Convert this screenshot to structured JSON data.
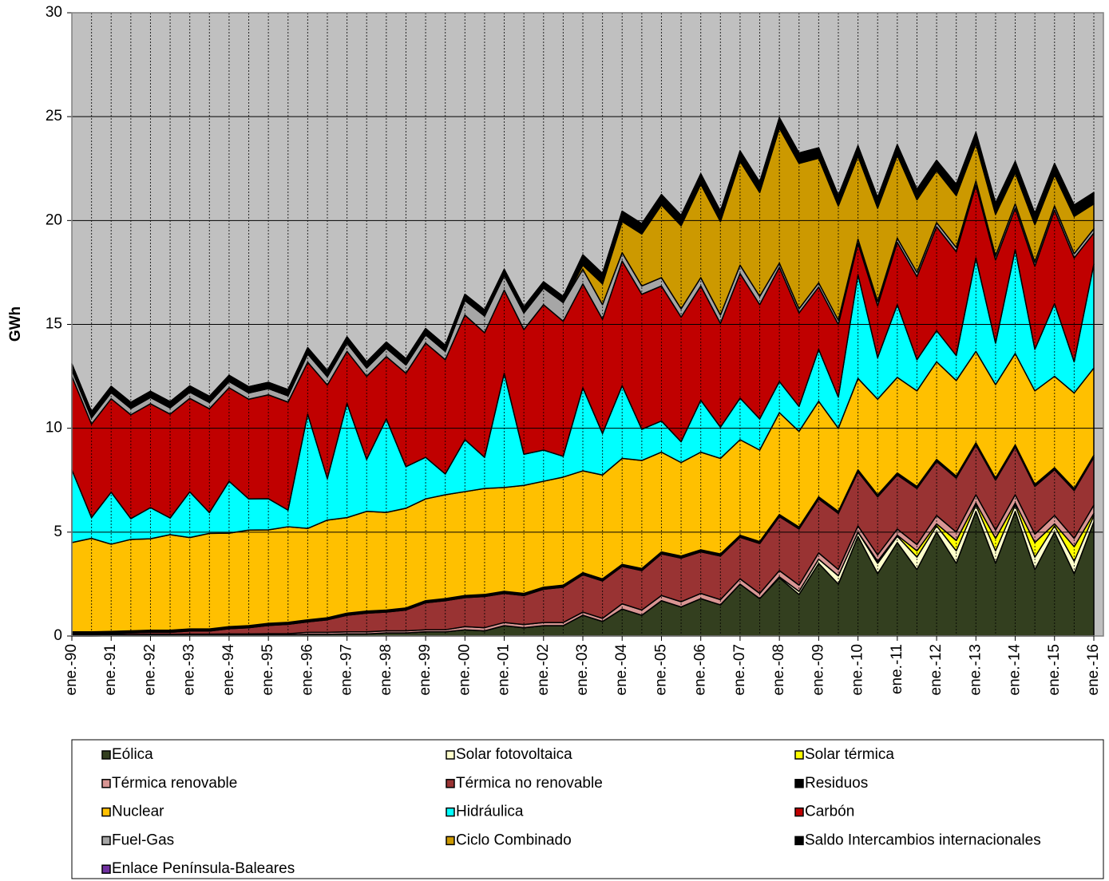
{
  "chart_data": {
    "type": "stacked_area",
    "y_label": "GWh",
    "categories": [
      "ene.-90",
      null,
      "ene.-91",
      null,
      "ene.-92",
      null,
      "ene.-93",
      null,
      "ene.-94",
      null,
      "ene.-95",
      null,
      "ene.-96",
      null,
      "ene.-97",
      null,
      "ene.-98",
      null,
      "ene.-99",
      null,
      "ene.-00",
      null,
      "ene.-01",
      null,
      "ene.-02",
      null,
      "ene.-03",
      null,
      "ene.-04",
      null,
      "ene.-05",
      null,
      "ene.-06",
      null,
      "ene.-07",
      null,
      "ene.-08",
      null,
      "ene.-09",
      null,
      "ene.-10",
      null,
      "ene.-11",
      null,
      "ene.-12",
      null,
      "ene.-13",
      null,
      "ene.-14",
      null,
      "ene.-15",
      null,
      "ene.-16"
    ],
    "ylim": [
      0,
      30
    ],
    "yticks": [
      0,
      5,
      10,
      15,
      20,
      25,
      30
    ],
    "grid": true,
    "legend": "bottom",
    "series": [
      {
        "name": "Eólica",
        "color": "#333f1f",
        "values": [
          0,
          0,
          0.02,
          0.02,
          0.03,
          0.03,
          0.04,
          0.04,
          0.05,
          0.05,
          0.06,
          0.06,
          0.08,
          0.08,
          0.1,
          0.1,
          0.15,
          0.15,
          0.2,
          0.2,
          0.3,
          0.25,
          0.5,
          0.4,
          0.5,
          0.5,
          1.0,
          0.7,
          1.3,
          1.0,
          1.7,
          1.4,
          1.8,
          1.5,
          2.5,
          1.8,
          2.8,
          2.0,
          3.5,
          2.5,
          4.8,
          3.0,
          4.5,
          3.2,
          5.0,
          3.5,
          6.0,
          3.5,
          6.0,
          3.2,
          5.0,
          3.0,
          5.5
        ]
      },
      {
        "name": "Solar fotovoltaica",
        "color": "#ffffcc",
        "values": [
          0,
          0,
          0,
          0,
          0,
          0,
          0,
          0,
          0,
          0,
          0,
          0,
          0,
          0,
          0,
          0,
          0,
          0,
          0,
          0,
          0,
          0,
          0,
          0,
          0,
          0,
          0,
          0,
          0,
          0,
          0,
          0,
          0,
          0,
          0,
          0,
          0.05,
          0.15,
          0.2,
          0.4,
          0.2,
          0.5,
          0.3,
          0.6,
          0.3,
          0.6,
          0.3,
          0.6,
          0.3,
          0.6,
          0.3,
          0.6,
          0.3
        ]
      },
      {
        "name": "Solar térmica",
        "color": "#ffff00",
        "values": [
          0,
          0,
          0,
          0,
          0,
          0,
          0,
          0,
          0,
          0,
          0,
          0,
          0,
          0,
          0,
          0,
          0,
          0,
          0,
          0,
          0,
          0,
          0,
          0,
          0,
          0,
          0,
          0,
          0,
          0,
          0,
          0,
          0,
          0,
          0,
          0,
          0,
          0,
          0,
          0,
          0,
          0.1,
          0.05,
          0.3,
          0.1,
          0.5,
          0.1,
          0.6,
          0.1,
          0.7,
          0.1,
          0.7,
          0.1
        ]
      },
      {
        "name": "Térmica renovable",
        "color": "#d99694",
        "values": [
          0.05,
          0.05,
          0.05,
          0.05,
          0.05,
          0.05,
          0.05,
          0.05,
          0.05,
          0.05,
          0.05,
          0.05,
          0.1,
          0.1,
          0.1,
          0.1,
          0.1,
          0.1,
          0.1,
          0.1,
          0.15,
          0.15,
          0.15,
          0.15,
          0.15,
          0.15,
          0.15,
          0.15,
          0.25,
          0.25,
          0.25,
          0.25,
          0.25,
          0.25,
          0.25,
          0.25,
          0.3,
          0.3,
          0.3,
          0.3,
          0.3,
          0.3,
          0.3,
          0.3,
          0.4,
          0.4,
          0.4,
          0.4,
          0.4,
          0.4,
          0.4,
          0.4,
          0.4
        ]
      },
      {
        "name": "Térmica no renovable",
        "color": "#993333",
        "values": [
          0.05,
          0.05,
          0.05,
          0.08,
          0.1,
          0.1,
          0.15,
          0.15,
          0.25,
          0.3,
          0.4,
          0.45,
          0.5,
          0.6,
          0.8,
          0.9,
          0.9,
          1.0,
          1.3,
          1.4,
          1.4,
          1.5,
          1.4,
          1.4,
          1.6,
          1.7,
          1.8,
          1.8,
          1.8,
          1.9,
          2.0,
          2.1,
          2.0,
          2.1,
          2.0,
          2.4,
          2.6,
          2.7,
          2.6,
          2.7,
          2.6,
          2.8,
          2.6,
          2.7,
          2.6,
          2.6,
          2.4,
          2.4,
          2.3,
          2.3,
          2.2,
          2.3,
          2.3
        ]
      },
      {
        "name": "Residuos",
        "color": "#000000",
        "values": [
          0.1,
          0.1,
          0.1,
          0.1,
          0.1,
          0.1,
          0.1,
          0.1,
          0.1,
          0.1,
          0.1,
          0.1,
          0.1,
          0.1,
          0.1,
          0.1,
          0.1,
          0.1,
          0.1,
          0.1,
          0.1,
          0.1,
          0.1,
          0.1,
          0.1,
          0.1,
          0.1,
          0.1,
          0.1,
          0.1,
          0.1,
          0.1,
          0.1,
          0.1,
          0.1,
          0.1,
          0.1,
          0.1,
          0.1,
          0.1,
          0.1,
          0.1,
          0.1,
          0.1,
          0.1,
          0.1,
          0.1,
          0.1,
          0.1,
          0.1,
          0.1,
          0.1,
          0.1
        ]
      },
      {
        "name": "Nuclear",
        "color": "#ffc000",
        "values": [
          4.3,
          4.5,
          4.2,
          4.4,
          4.4,
          4.6,
          4.4,
          4.6,
          4.5,
          4.6,
          4.5,
          4.6,
          4.4,
          4.7,
          4.6,
          4.8,
          4.7,
          4.8,
          4.9,
          5.0,
          5.0,
          5.1,
          5.0,
          5.2,
          5.1,
          5.2,
          4.9,
          5.0,
          5.1,
          5.2,
          4.8,
          4.5,
          4.7,
          4.6,
          4.6,
          4.4,
          4.9,
          4.6,
          4.6,
          4.0,
          4.4,
          4.6,
          4.6,
          4.6,
          4.7,
          4.6,
          4.4,
          4.5,
          4.4,
          4.5,
          4.4,
          4.6,
          4.2
        ]
      },
      {
        "name": "Hidráulica",
        "color": "#00ffff",
        "values": [
          3.5,
          1.0,
          2.5,
          1.0,
          1.5,
          0.8,
          2.2,
          1.0,
          2.5,
          1.5,
          1.5,
          0.8,
          5.5,
          2.0,
          5.5,
          2.5,
          4.5,
          2.0,
          2.0,
          1.0,
          2.5,
          1.5,
          5.5,
          1.5,
          1.5,
          1.0,
          4.0,
          2.0,
          3.5,
          1.5,
          1.5,
          1.0,
          2.5,
          1.5,
          2.0,
          1.5,
          1.5,
          1.2,
          2.5,
          1.5,
          5.0,
          2.0,
          3.5,
          1.5,
          1.5,
          1.2,
          4.5,
          2.0,
          5.0,
          2.0,
          3.5,
          1.5,
          5.0
        ]
      },
      {
        "name": "Carbón",
        "color": "#c00000",
        "values": [
          4.5,
          4.5,
          4.5,
          5.0,
          5.0,
          5.0,
          4.5,
          5.0,
          4.5,
          4.8,
          5.0,
          5.2,
          2.5,
          4.5,
          2.5,
          4.0,
          3.0,
          4.5,
          5.5,
          5.5,
          6.0,
          6.0,
          4.0,
          6.0,
          7.0,
          6.5,
          5.0,
          5.5,
          6.0,
          6.5,
          6.5,
          6.0,
          5.5,
          5.0,
          6.0,
          5.5,
          5.5,
          4.5,
          3.0,
          3.5,
          1.5,
          2.5,
          3.0,
          4.0,
          5.0,
          5.0,
          3.5,
          4.0,
          2.0,
          4.0,
          4.5,
          5.0,
          1.5
        ]
      },
      {
        "name": "Fuel-Gas",
        "color": "#a6a6a6",
        "values": [
          0.3,
          0.3,
          0.3,
          0.3,
          0.3,
          0.3,
          0.3,
          0.3,
          0.3,
          0.3,
          0.3,
          0.3,
          0.4,
          0.4,
          0.4,
          0.4,
          0.4,
          0.4,
          0.4,
          0.4,
          0.7,
          0.8,
          0.7,
          0.8,
          0.8,
          0.9,
          0.7,
          0.7,
          0.4,
          0.4,
          0.4,
          0.4,
          0.4,
          0.4,
          0.4,
          0.4,
          0.2,
          0.2,
          0.2,
          0.2,
          0.2,
          0.2,
          0.2,
          0.2,
          0.2,
          0.2,
          0.2,
          0.2,
          0.2,
          0.2,
          0.2,
          0.2,
          0.2
        ]
      },
      {
        "name": "Ciclo Combinado",
        "color": "#cc9900",
        "values": [
          0,
          0,
          0,
          0,
          0,
          0,
          0,
          0,
          0,
          0,
          0,
          0,
          0,
          0,
          0,
          0,
          0,
          0,
          0,
          0,
          0,
          0,
          0,
          0,
          0,
          0,
          0.2,
          1.0,
          1.5,
          2.5,
          3.5,
          4.0,
          4.5,
          4.5,
          5.0,
          5.0,
          6.5,
          7.0,
          6.0,
          5.5,
          4.0,
          4.5,
          4.0,
          3.5,
          2.5,
          2.5,
          1.8,
          2.0,
          1.5,
          1.8,
          1.5,
          1.8,
          1.2
        ]
      },
      {
        "name": "Saldo Intercambios internacionales",
        "color": "#000000",
        "values": [
          0.3,
          0.3,
          0.3,
          0.3,
          0.3,
          0.3,
          0.3,
          0.3,
          0.3,
          0.3,
          0.3,
          0.3,
          0.3,
          0.3,
          0.3,
          0.3,
          0.3,
          0.3,
          0.3,
          0.3,
          0.3,
          0.3,
          0.3,
          0.3,
          0.3,
          0.3,
          0.5,
          0.5,
          0.5,
          0.5,
          0.5,
          0.5,
          0.5,
          0.5,
          0.5,
          0.5,
          0.5,
          0.5,
          0.5,
          0.5,
          0.5,
          0.5,
          0.5,
          0.5,
          0.5,
          0.5,
          0.5,
          0.5,
          0.5,
          0.5,
          0.5,
          0.5,
          0.5
        ]
      },
      {
        "name": "Enlace Península-Baleares",
        "color": "#7030a0",
        "values": [
          0,
          0,
          0,
          0,
          0,
          0,
          0,
          0,
          0,
          0,
          0,
          0,
          0,
          0,
          0,
          0,
          0,
          0,
          0,
          0,
          0,
          0,
          0,
          0,
          0,
          0,
          0,
          0,
          0,
          0,
          0,
          0,
          0,
          0,
          0,
          0,
          0,
          0,
          0,
          0,
          0,
          0,
          0,
          0,
          0,
          0.05,
          0.05,
          0.05,
          0.05,
          0.05,
          0.05,
          0.05,
          0.05
        ]
      }
    ]
  }
}
